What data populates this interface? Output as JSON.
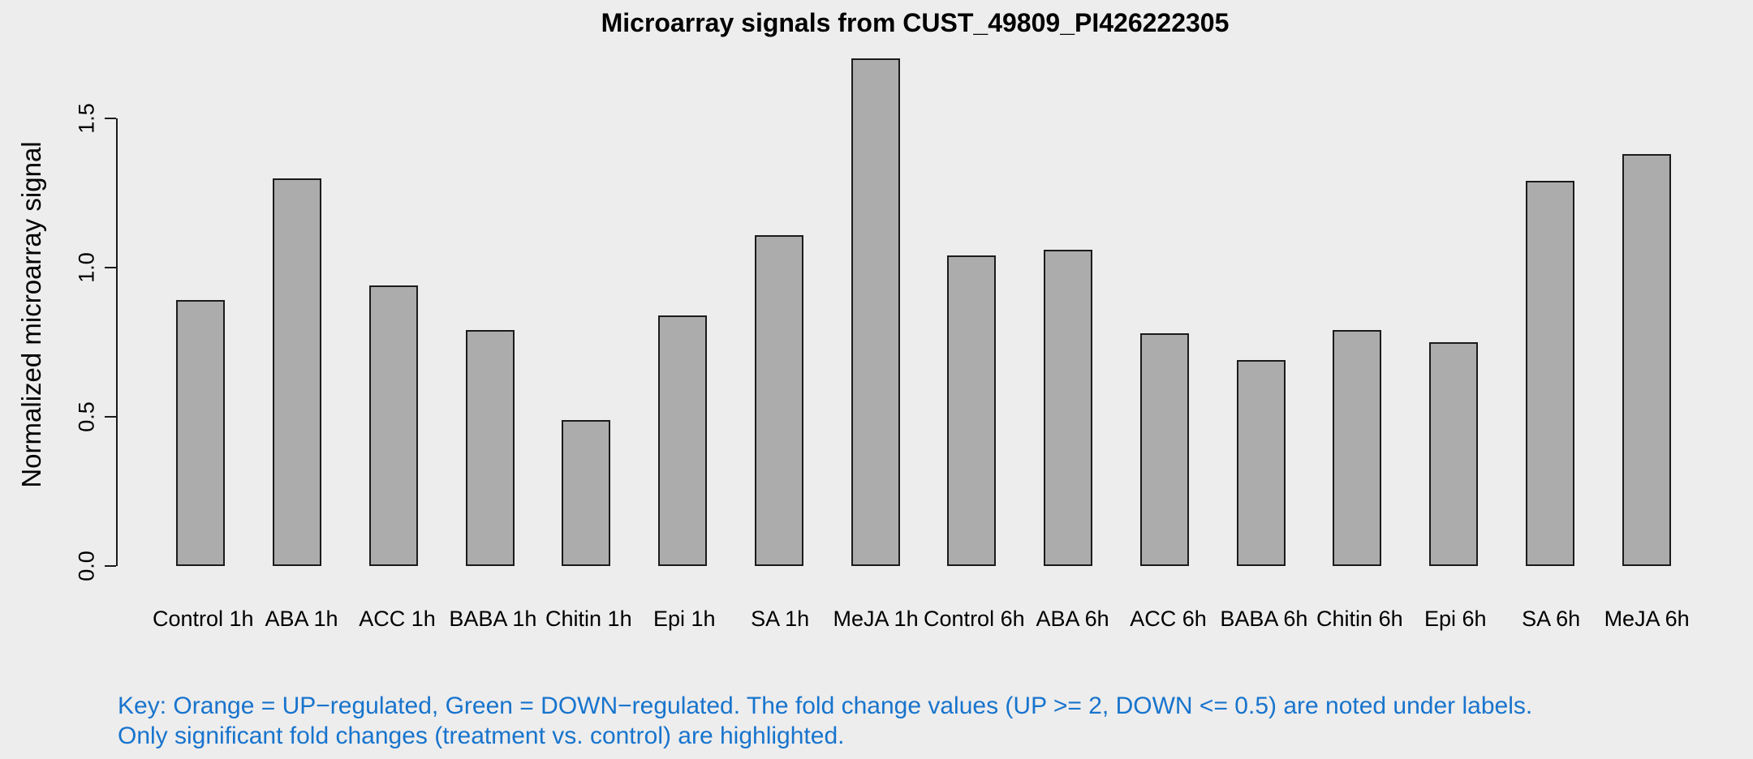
{
  "title": "Microarray signals from CUST_49809_PI426222305",
  "y_axis": {
    "label": "Normalized microarray signal",
    "tick_labels": [
      "0.0",
      "0.5",
      "1.0",
      "1.5"
    ]
  },
  "key": {
    "line1": "Key: Orange = UP−regulated, Green = DOWN−regulated. The fold change values (UP >= 2, DOWN <= 0.5) are noted under labels.",
    "line2": "Only significant fold changes (treatment vs. control) are highlighted.",
    "color": "#1874CD"
  },
  "colors": {
    "background": "#EDEDED",
    "bar_fill": "#ACACAC",
    "bar_border": "#1B1B1B",
    "axis": "#1B1B1B",
    "text": "#000000"
  },
  "chart_data": {
    "type": "bar",
    "title": "Microarray signals from CUST_49809_PI426222305",
    "xlabel": "",
    "ylabel": "Normalized microarray signal",
    "categories": [
      "Control 1h",
      "ABA 1h",
      "ACC 1h",
      "BABA 1h",
      "Chitin 1h",
      "Epi 1h",
      "SA 1h",
      "MeJA 1h",
      "Control 6h",
      "ABA 6h",
      "ACC 6h",
      "BABA 6h",
      "Chitin 6h",
      "Epi 6h",
      "SA 6h",
      "MeJA 6h"
    ],
    "values": [
      0.89,
      1.3,
      0.94,
      0.79,
      0.49,
      0.84,
      1.11,
      1.7,
      1.04,
      1.06,
      0.78,
      0.69,
      0.79,
      0.75,
      1.29,
      1.38
    ],
    "yticks": [
      0.0,
      0.5,
      1.0,
      1.5
    ],
    "ylim": [
      0,
      1.7
    ],
    "grid": false,
    "legend_position": "none",
    "bar_fill": "#ACACAC",
    "bar_border": "#1B1B1B",
    "background": "#EDEDED"
  }
}
